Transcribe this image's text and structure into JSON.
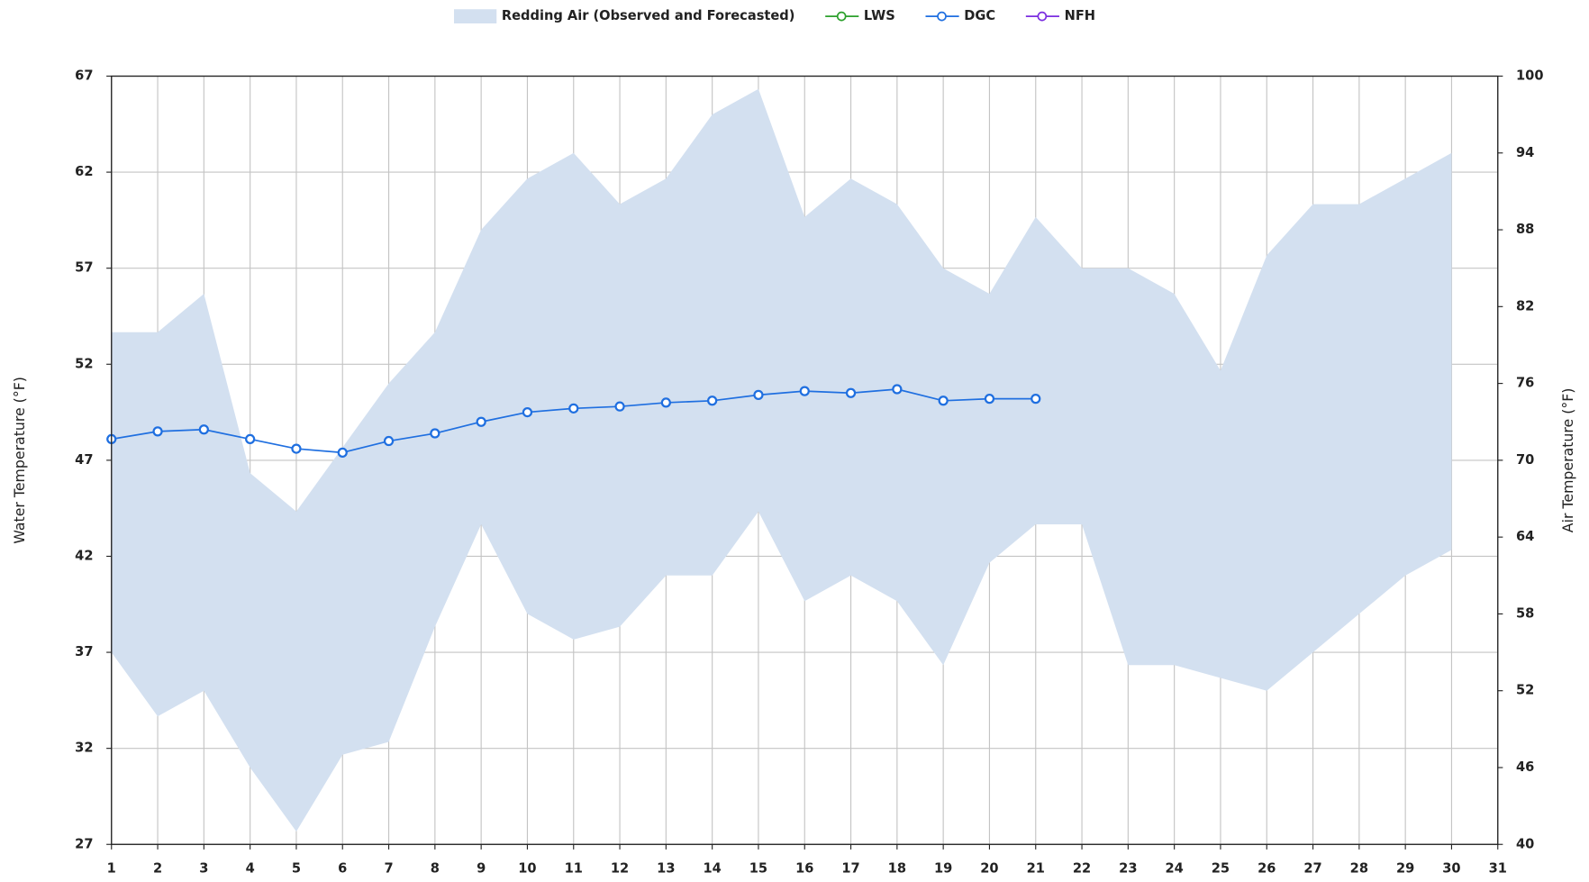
{
  "chart_data": {
    "type": "line",
    "x": [
      1,
      2,
      3,
      4,
      5,
      6,
      7,
      8,
      9,
      10,
      11,
      12,
      13,
      14,
      15,
      16,
      17,
      18,
      19,
      20,
      21,
      22,
      23,
      24,
      25,
      26,
      27,
      28,
      29,
      30,
      31
    ],
    "xlim": [
      1,
      31
    ],
    "xticks": [
      1,
      2,
      3,
      4,
      5,
      6,
      7,
      8,
      9,
      10,
      11,
      12,
      13,
      14,
      15,
      16,
      17,
      18,
      19,
      20,
      21,
      22,
      23,
      24,
      25,
      26,
      27,
      28,
      29,
      30,
      31
    ],
    "ylim": [
      27,
      67
    ],
    "yticks": [
      27,
      32,
      37,
      42,
      47,
      52,
      57,
      62,
      67
    ],
    "y2lim": [
      40,
      100
    ],
    "y2ticks": [
      40,
      46,
      52,
      58,
      64,
      70,
      76,
      82,
      88,
      94,
      100
    ],
    "ylabel": "Water Temperature (°F)",
    "y2label": "Air Temperature (°F)",
    "grid": true,
    "legend": "top",
    "series": [
      {
        "name": "Redding Air (Observed and Forecasted)",
        "type": "band",
        "axis": "y2",
        "color": "#d3e0f0",
        "upper": [
          80,
          80,
          83,
          69,
          66,
          71,
          76,
          80,
          88,
          92,
          94,
          90,
          92,
          97,
          99,
          89,
          92,
          90,
          85,
          83,
          89,
          85,
          85,
          83,
          77,
          86,
          90,
          90,
          92,
          94,
          null
        ],
        "lower": [
          55,
          50,
          52,
          46,
          41,
          47,
          48,
          57,
          65,
          58,
          56,
          57,
          61,
          61,
          66,
          59,
          61,
          59,
          54,
          62,
          65,
          65,
          54,
          54,
          53,
          52,
          55,
          58,
          61,
          63,
          null
        ]
      },
      {
        "name": "LWS",
        "type": "line",
        "color": "#2ca02c",
        "values": [
          null,
          null,
          null,
          null,
          null,
          null,
          null,
          null,
          null,
          null,
          null,
          null,
          null,
          null,
          null,
          null,
          null,
          null,
          null,
          null,
          null,
          null,
          null,
          null,
          null,
          null,
          null,
          null,
          null,
          null,
          null
        ]
      },
      {
        "name": "DGC",
        "type": "line",
        "color": "#1f6fe0",
        "values": [
          48.1,
          48.5,
          48.6,
          48.1,
          47.6,
          47.4,
          48.0,
          48.4,
          49.0,
          49.5,
          49.7,
          49.8,
          50.0,
          50.1,
          50.4,
          50.6,
          50.5,
          50.7,
          50.1,
          50.2,
          50.2,
          null,
          null,
          null,
          null,
          null,
          null,
          null,
          null,
          null,
          null
        ]
      },
      {
        "name": "NFH",
        "type": "line",
        "color": "#7b2ee0",
        "values": [
          null,
          null,
          null,
          null,
          null,
          null,
          null,
          null,
          null,
          null,
          null,
          null,
          null,
          null,
          null,
          null,
          null,
          null,
          null,
          null,
          null,
          null,
          null,
          null,
          null,
          null,
          null,
          null,
          null,
          null,
          null
        ]
      }
    ]
  }
}
